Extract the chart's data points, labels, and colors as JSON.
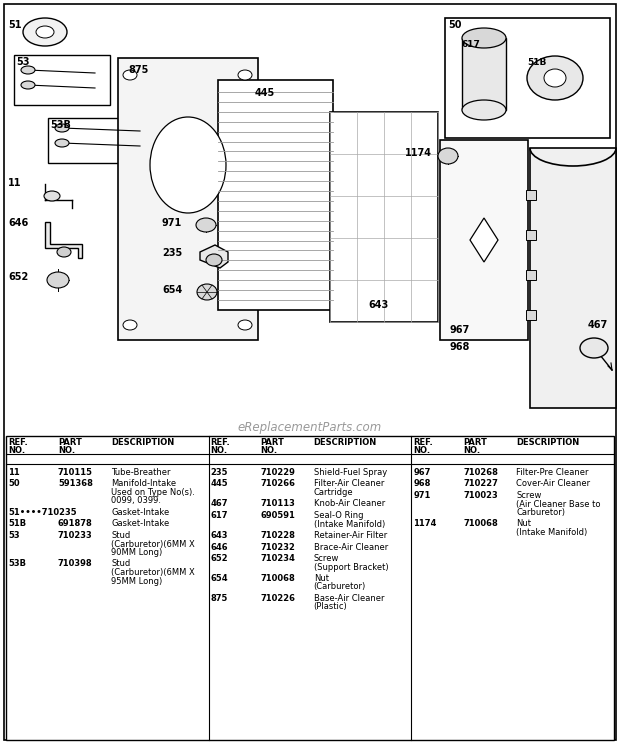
{
  "bg_color": "#ffffff",
  "watermark": "eReplacementParts.com",
  "parts": [
    {
      "col": 0,
      "ref": "11",
      "part": "710115",
      "desc": "Tube-Breather"
    },
    {
      "col": 0,
      "ref": "50",
      "part": "591368",
      "desc": "Manifold-Intake\nUsed on Type No(s).\n0099, 0399."
    },
    {
      "col": 0,
      "ref": "51••••710235",
      "part": "",
      "desc": "Gasket-Intake"
    },
    {
      "col": 0,
      "ref": "51B",
      "part": "691878",
      "desc": "Gasket-Intake"
    },
    {
      "col": 0,
      "ref": "53",
      "part": "710233",
      "desc": "Stud\n(Carburetor)(6MM X\n90MM Long)"
    },
    {
      "col": 0,
      "ref": "53B",
      "part": "710398",
      "desc": "Stud\n(Carburetor)(6MM X\n95MM Long)"
    },
    {
      "col": 1,
      "ref": "235",
      "part": "710229",
      "desc": "Shield-Fuel Spray"
    },
    {
      "col": 1,
      "ref": "445",
      "part": "710266",
      "desc": "Filter-Air Cleaner\nCartridge"
    },
    {
      "col": 1,
      "ref": "467",
      "part": "710113",
      "desc": "Knob-Air Cleaner"
    },
    {
      "col": 1,
      "ref": "617",
      "part": "690591",
      "desc": "Seal-O Ring\n(Intake Manifold)"
    },
    {
      "col": 1,
      "ref": "643",
      "part": "710228",
      "desc": "Retainer-Air Filter"
    },
    {
      "col": 1,
      "ref": "646",
      "part": "710232",
      "desc": "Brace-Air Cleaner"
    },
    {
      "col": 1,
      "ref": "652",
      "part": "710234",
      "desc": "Screw\n(Support Bracket)"
    },
    {
      "col": 1,
      "ref": "654",
      "part": "710068",
      "desc": "Nut\n(Carburetor)"
    },
    {
      "col": 1,
      "ref": "875",
      "part": "710226",
      "desc": "Base-Air Cleaner\n(Plastic)"
    },
    {
      "col": 2,
      "ref": "967",
      "part": "710268",
      "desc": "Filter-Pre Cleaner"
    },
    {
      "col": 2,
      "ref": "968",
      "part": "710227",
      "desc": "Cover-Air Cleaner"
    },
    {
      "col": 2,
      "ref": "971",
      "part": "710023",
      "desc": "Screw\n(Air Cleaner Base to\nCarburetor)"
    },
    {
      "col": 2,
      "ref": "1174",
      "part": "710068",
      "desc": "Nut\n(Intake Manifold)"
    }
  ]
}
